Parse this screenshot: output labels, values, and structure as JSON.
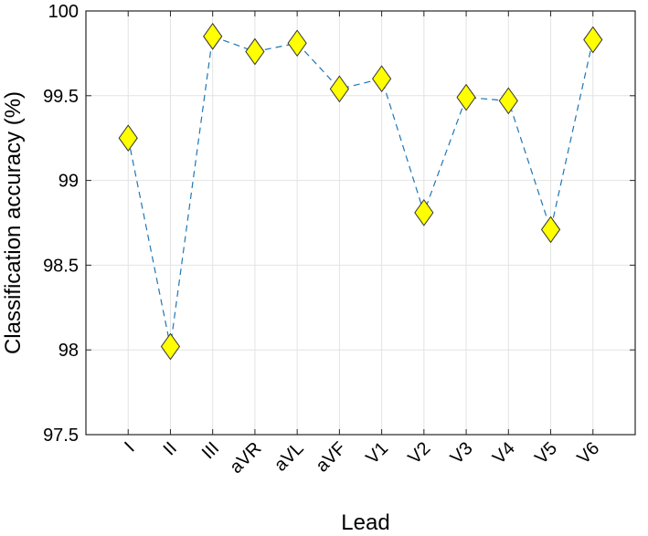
{
  "chart_data": {
    "type": "line",
    "title": "",
    "xlabel": "Lead",
    "ylabel": "Classification accuracy (%)",
    "categories": [
      "I",
      "II",
      "III",
      "aVR",
      "aVL",
      "aVF",
      "V1",
      "V2",
      "V3",
      "V4",
      "V5",
      "V6"
    ],
    "series": [
      {
        "values": [
          99.25,
          98.02,
          99.85,
          99.76,
          99.81,
          99.54,
          99.6,
          98.81,
          99.49,
          99.47,
          98.71,
          99.83
        ],
        "line_style": "dashed",
        "line_color": "#1f77b4",
        "marker": "diamond",
        "marker_color": "#ffff00"
      }
    ],
    "ylim": [
      97.5,
      100
    ],
    "yticks": [
      "97.5",
      "98",
      "98.5",
      "99",
      "99.5",
      "100"
    ],
    "grid": true
  }
}
